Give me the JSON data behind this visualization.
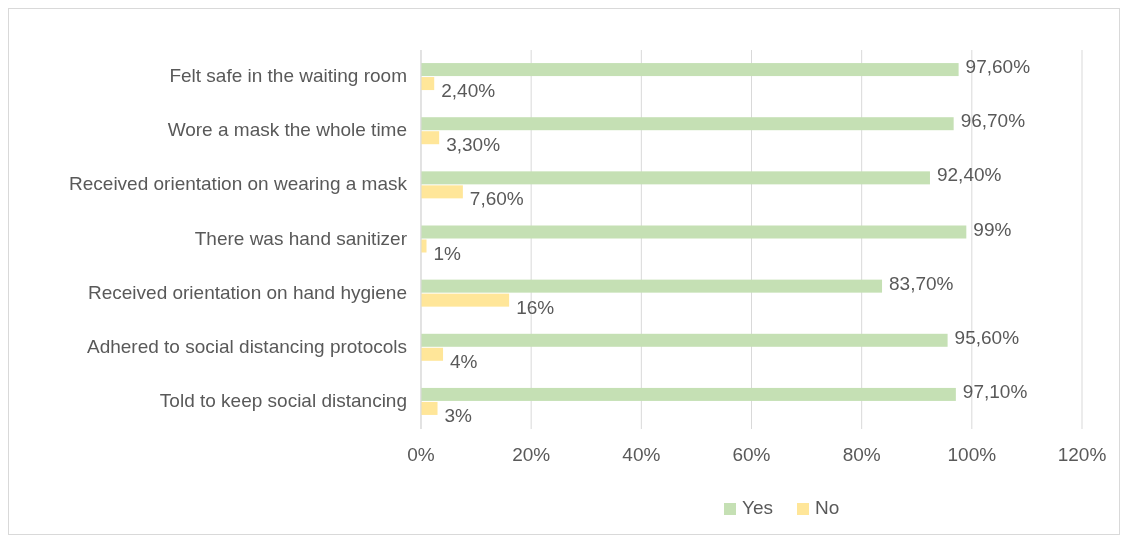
{
  "chart_data": {
    "type": "bar",
    "orientation": "horizontal",
    "categories": [
      "Felt safe in the waiting room",
      "Wore a mask the whole time",
      "Received orientation on wearing a mask",
      "There was hand sanitizer",
      "Received orientation on hand hygiene",
      "Adhered to social distancing protocols",
      "Told to keep social distancing"
    ],
    "series": [
      {
        "name": "Yes",
        "color": "#c5e0b4",
        "values": [
          97.6,
          96.7,
          92.4,
          99,
          83.7,
          95.6,
          97.1
        ],
        "value_labels": [
          "97,60%",
          "96,70%",
          "92,40%",
          "99%",
          "83,70%",
          "95,60%",
          "97,10%"
        ]
      },
      {
        "name": "No",
        "color": "#ffe699",
        "values": [
          2.4,
          3.3,
          7.6,
          1,
          16,
          4,
          3
        ],
        "value_labels": [
          "2,40%",
          "3,30%",
          "7,60%",
          "1%",
          "16%",
          "4%",
          "3%"
        ]
      }
    ],
    "xlim": [
      0,
      120
    ],
    "xticks": [
      {
        "value": 0,
        "label": "0%"
      },
      {
        "value": 20,
        "label": "20%"
      },
      {
        "value": 40,
        "label": "40%"
      },
      {
        "value": 60,
        "label": "60%"
      },
      {
        "value": 80,
        "label": "80%"
      },
      {
        "value": 100,
        "label": "100%"
      },
      {
        "value": 120,
        "label": "120%"
      }
    ],
    "grid": "x",
    "legend": "bottom"
  }
}
